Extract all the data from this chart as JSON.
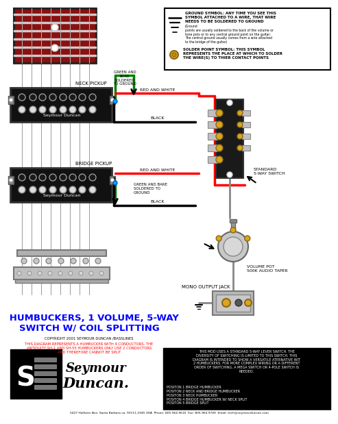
{
  "title_line1": "2 HUMBUCKERS, 1 VOLUME, 5-WAY",
  "title_line2": "SWITCH W/ COIL SPLITTING",
  "subtitle": "COPYRIGHT 2001 SEYMOUR DUNCAN /BASSLINES",
  "warning_red": "THIS DIAGRAM REPRESENTS A HUMBUCKER WITH 4 CONDUCTORS, THE\nANTIQUITY,SH-1 AND SH-55 HUMBUCKERS ONLY USE 2 CONDUCTORS\nAND THEREFORE CANNOT BE SPLIT",
  "footer": "5427 Hollister Ave, Santa Barbara ca. 93111-2345 USA  Phone: 805.964.9610  Fax: 805.964.9749  Email: tech@seymourduncan.com",
  "ground_title": "GROUND SYMBOL: ANY TIME YOU SEE THIS\nSYMBOL ATTACHED TO A WIRE, THAT WIRE\nNEEDS TO BE SOLDERED TO GROUND",
  "ground_body": "(Ground\npoints are usually soldered to the back of the volume or\ntone pots or to any central ground point on the guitar;\nThe central ground usually comes from a wire attached\nto the bridge of the guitar)",
  "solder_title": "SOLDER POINT SYMBOL: THIS SYMBOL\nREPRESENTS THE PLACE AT WHICH TO SOLDER\nTHE WIRE(S) TO THIER CONTACT POINTS",
  "black_box_main": "THIS MOD USES A STANDARD 5-WAY LEVER SWITCH. THE\nDIVERSITY OF SWITCHING IS LIMITED TO THIS SWITCH. THIS\nDIAGRAM IS INTENDED TO SHOW A VERSATILE ATERNATIVE WIT\n2 HUMBUCKERS. FOR MORE COMPLEX WIRING OR A DIFFERENT\nORDER OF SWITCHING, A MEGA SWITCH OR 4-POLE SWITCH IS\nNEEDED.",
  "positions": "POSITON 1 BRIDGE HUMBUCKER\nPOSITON 2 NECK AND BRIDGE HUMBUCKER\nPOSITON 3 NECK HUMBUCKER\nPOSITON 4 BRIDGE HUMBUCKER W/ NECK SPLIT\nPOSITON 5 BRIDGE SPLIT",
  "neck_label": "NECK PICKUP",
  "bridge_label": "BRIDGE PICKUP",
  "switch_label": "STANDARD\n5-WAY SWITCH",
  "volume_label": "VOLUME POT\n500K AUDIO TAPER",
  "jack_label": "MONO OUTPUT JACK",
  "green_top": "GREEN AND\nBARE\nSOLDERED\nTO GROUND",
  "green_bottom": "GREEN AND BARE\nSOLDERED TO\nGROUND",
  "red_white": "RED AND WHITE",
  "black_wire": "BLACK",
  "bg": "#ffffff"
}
